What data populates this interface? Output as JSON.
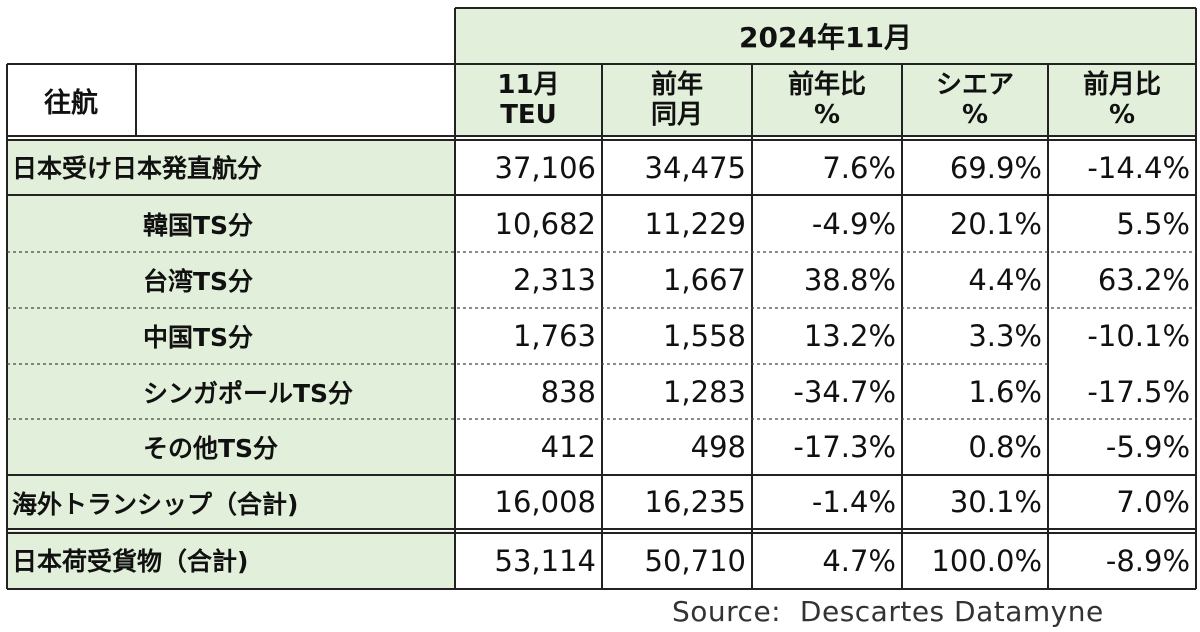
{
  "header": {
    "period": "2024年11月",
    "corner": "往航",
    "columns": [
      "11月\nTEU",
      "前年\n同月",
      "前年比\n%",
      "シエア\n%",
      "前月比\n%"
    ]
  },
  "rows": [
    {
      "label": "日本受け日本発直航分",
      "values": [
        "37,106",
        "34,475",
        "7.6%",
        "69.9%",
        "-14.4%"
      ]
    },
    {
      "label": "韓国TS分",
      "values": [
        "10,682",
        "11,229",
        "-4.9%",
        "20.1%",
        "5.5%"
      ]
    },
    {
      "label": "台湾TS分",
      "values": [
        "2,313",
        "1,667",
        "38.8%",
        "4.4%",
        "63.2%"
      ]
    },
    {
      "label": "中国TS分",
      "values": [
        "1,763",
        "1,558",
        "13.2%",
        "3.3%",
        "-10.1%"
      ]
    },
    {
      "label": "シンガポールTS分",
      "values": [
        "838",
        "1,283",
        "-34.7%",
        "1.6%",
        "-17.5%"
      ]
    },
    {
      "label": "その他TS分",
      "values": [
        "412",
        "498",
        "-17.3%",
        "0.8%",
        "-5.9%"
      ]
    },
    {
      "label": "海外トランシップ（合計)",
      "values": [
        "16,008",
        "16,235",
        "-1.4%",
        "30.1%",
        "7.0%"
      ]
    },
    {
      "label": "日本荷受貨物（合計)",
      "values": [
        "53,114",
        "50,710",
        "4.7%",
        "100.0%",
        "-8.9%"
      ]
    }
  ],
  "source": "Source:  Descartes Datamyne",
  "colors": {
    "header_fill": "#e2efda",
    "border": "#222222"
  }
}
